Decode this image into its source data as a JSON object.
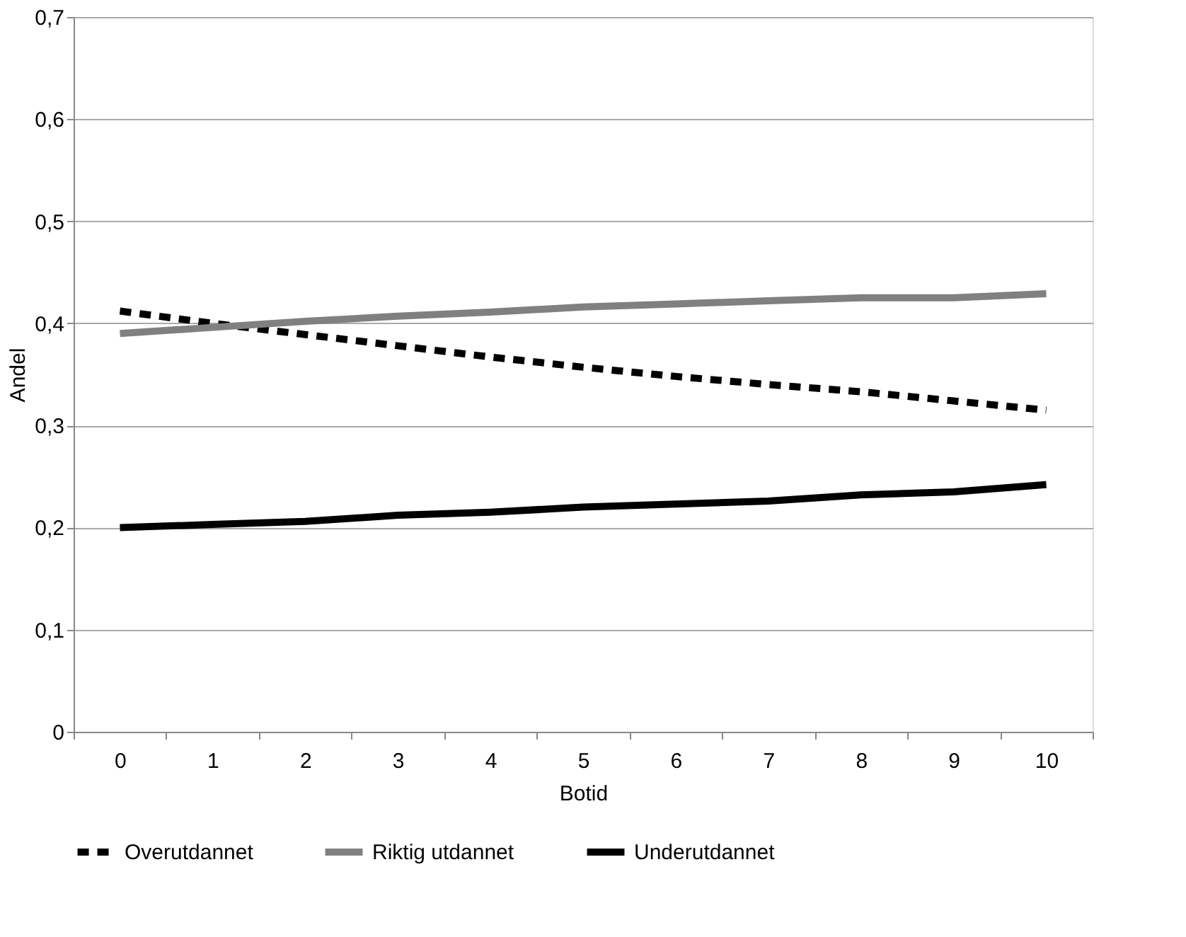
{
  "chart_data": {
    "type": "line",
    "xlabel": "Botid",
    "ylabel": "Andel",
    "categories": [
      "0",
      "1",
      "2",
      "3",
      "4",
      "5",
      "6",
      "7",
      "8",
      "9",
      "10"
    ],
    "series": [
      {
        "name": "Overutdannet",
        "color": "#000000",
        "line_style": "dashed",
        "values": [
          0.412,
          0.4,
          0.389,
          0.378,
          0.367,
          0.357,
          0.348,
          0.34,
          0.333,
          0.324,
          0.315
        ]
      },
      {
        "name": "Riktig utdannet",
        "color": "#808080",
        "line_style": "solid",
        "values": [
          0.39,
          0.396,
          0.402,
          0.407,
          0.411,
          0.416,
          0.419,
          0.422,
          0.425,
          0.425,
          0.429
        ]
      },
      {
        "name": "Underutdannet",
        "color": "#000000",
        "line_style": "solid",
        "values": [
          0.2,
          0.203,
          0.206,
          0.212,
          0.215,
          0.22,
          0.223,
          0.226,
          0.232,
          0.235,
          0.242
        ]
      }
    ],
    "ylim": [
      0,
      0.7
    ],
    "yticks": [
      0,
      {
        "value": 0.1,
        "label": "0,1"
      },
      {
        "value": 0.2,
        "label": "0,2"
      },
      {
        "value": 0.3,
        "label": "0,3"
      },
      {
        "value": 0.4,
        "label": "0,4"
      },
      {
        "value": 0.5,
        "label": "0,5"
      },
      {
        "value": 0.6,
        "label": "0,6"
      },
      {
        "value": 0.7,
        "label": "0,7"
      }
    ],
    "grid": "y",
    "legend": "bottom",
    "marker": "none"
  }
}
